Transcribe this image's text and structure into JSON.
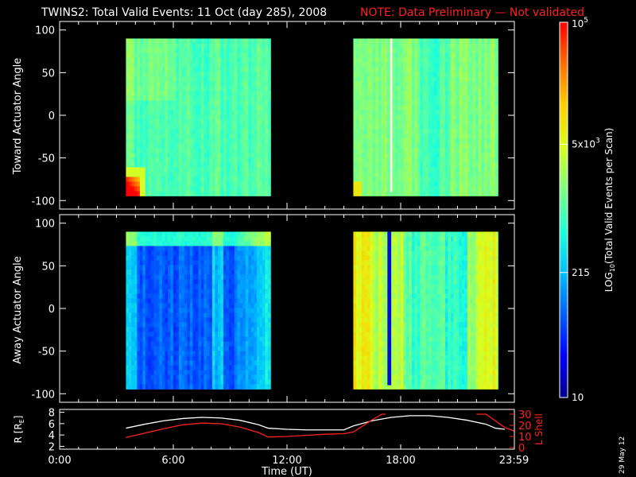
{
  "header": {
    "title": "TWINS2: Total Valid Events: 11 Oct (day 285), 2008",
    "note": "NOTE: Data Preliminary — Not validated",
    "note_color": "#ff2020"
  },
  "stamp": "29 May 12",
  "chart_data": [
    {
      "type": "heatmap",
      "panel": "toward",
      "ylabel": "Toward Actuator Angle",
      "ylim": [
        -110,
        110
      ],
      "yticks": [
        100,
        50,
        0,
        -50,
        -100
      ],
      "xlim": [
        0,
        24
      ],
      "data_coverage": [
        [
          3.5,
          11.0
        ],
        [
          15.5,
          23.0
        ]
      ],
      "y_coverage": [
        -90,
        90
      ],
      "dropout_hours": [
        17.45,
        17.55
      ],
      "dominant_color": "cyan/green (~500–5000 events)",
      "hotspot": "orange-red near -85 to -70 deg at 3.5–4.0 h and faint orange at 15.5 h"
    },
    {
      "type": "heatmap",
      "panel": "away",
      "ylabel": "Away Actuator Angle",
      "ylim": [
        -110,
        110
      ],
      "yticks": [
        100,
        50,
        0,
        -50,
        -100
      ],
      "xlim": [
        0,
        24
      ],
      "data_coverage": [
        [
          3.5,
          11.0
        ],
        [
          15.5,
          23.0
        ]
      ],
      "y_coverage": [
        -90,
        90
      ],
      "dropout_hours": [
        17.3,
        17.5
      ],
      "dominant_color": "blue (~100–300 events) before 11:00, yellow/green after 15:30"
    },
    {
      "type": "line",
      "panel": "orbit",
      "xlabel": "Time (UT)",
      "xticks": [
        "0:00",
        "6:00",
        "12:00",
        "18:00",
        "23:59"
      ],
      "xtick_hours": [
        0,
        6,
        12,
        18,
        23.98
      ],
      "left_axis": {
        "label": "R [R",
        "label_sub": "E",
        "label_close": "]",
        "ylim": [
          1.5,
          8.5
        ],
        "yticks": [
          2,
          4,
          6,
          8
        ]
      },
      "right_axis": {
        "label": "L Shell",
        "ylim": [
          0,
          30
        ],
        "yticks": [
          0,
          10,
          20,
          30
        ],
        "color": "#ff2020"
      },
      "series": [
        {
          "name": "R [RE]",
          "color": "#ffffff",
          "axis": "left",
          "x": [
            3.5,
            4.5,
            5.5,
            6.5,
            7.5,
            8.5,
            9.5,
            10.5,
            11.0,
            12.0,
            13.0,
            14.0,
            15.0,
            15.5,
            16.5,
            17.5,
            18.5,
            19.5,
            20.5,
            21.5,
            22.5,
            23.0,
            23.5
          ],
          "values": [
            5.2,
            5.9,
            6.5,
            6.9,
            7.1,
            7.0,
            6.6,
            5.8,
            5.2,
            5.0,
            4.9,
            4.9,
            4.9,
            5.6,
            6.5,
            7.1,
            7.4,
            7.4,
            7.1,
            6.6,
            5.9,
            5.2,
            5.0
          ]
        },
        {
          "name": "L Shell",
          "color": "#ff2020",
          "axis": "right",
          "x": [
            3.5,
            4.5,
            5.5,
            6.5,
            7.5,
            8.5,
            9.5,
            10.5,
            11.0,
            12.0,
            13.0,
            14.0,
            15.0,
            15.5,
            16.0,
            16.5,
            17.0,
            17.2
          ],
          "values": [
            9.0,
            13.0,
            17.0,
            20.5,
            22.0,
            21.5,
            18.5,
            13.5,
            9.5,
            10.0,
            11.0,
            12.0,
            12.5,
            14.0,
            19.5,
            25.0,
            30.0,
            30.0
          ],
          "x2": [
            22.0,
            22.5,
            23.0,
            23.5,
            23.98
          ],
          "values2": [
            30.0,
            30.0,
            24.0,
            18.0,
            15.0
          ]
        }
      ]
    }
  ],
  "colorbar": {
    "label_prefix": "LOG",
    "label_sub": "10",
    "label_suffix": "(Total Valid Events per Scan)",
    "scale": "log",
    "ticks": [
      {
        "value": 10,
        "label": "10"
      },
      {
        "value": 215,
        "label": "215"
      },
      {
        "value": 5000,
        "label_mant": "5x10",
        "label_exp": "3"
      },
      {
        "value": 100000,
        "label_mant": "10",
        "label_exp": "5"
      }
    ],
    "colors": [
      "#00008b",
      "#0000ff",
      "#0060ff",
      "#00c0ff",
      "#20ffd8",
      "#80ff80",
      "#d8ff20",
      "#ffd000",
      "#ff7000",
      "#ff0000"
    ]
  }
}
